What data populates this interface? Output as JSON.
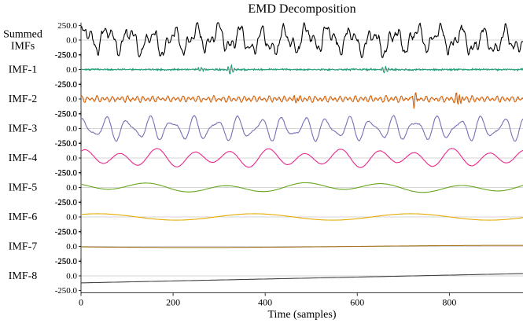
{
  "chart_data": {
    "type": "line",
    "title": "EMD Decomposition",
    "xlabel": "Time (samples)",
    "xlim": [
      0,
      960
    ],
    "x_ticks": [
      0,
      200,
      400,
      600,
      800
    ],
    "x_tick_labels": [
      "0",
      "200",
      "400",
      "600",
      "800"
    ],
    "y_ticks": [
      -250,
      0,
      250
    ],
    "y_tick_labels": [
      "-250.0",
      "0.0",
      "250.0"
    ],
    "ylim": [
      -300,
      300
    ],
    "grid": false,
    "zero_line": true,
    "series": [
      {
        "name": "Summed\nIMFs",
        "color": "#000000",
        "components": [
          {
            "amp": 160,
            "period": 48,
            "phase": 0.3
          },
          {
            "amp": 95,
            "period": 23,
            "phase": 1.2
          },
          {
            "amp": 55,
            "period": 11,
            "phase": 2.0
          },
          {
            "amp": 40,
            "period": 240,
            "phase": 0.5
          }
        ],
        "noise": 28
      },
      {
        "name": "IMF-1",
        "color": "#1b9e77",
        "components": [
          {
            "amp": 8,
            "period": 3.1,
            "phase": 0
          },
          {
            "amp": 6,
            "period": 4.7,
            "phase": 1
          }
        ],
        "noise": 10,
        "bursts": [
          {
            "x": 325,
            "amp": 90
          },
          {
            "x": 660,
            "amp": 70
          },
          {
            "x": 260,
            "amp": 35
          }
        ]
      },
      {
        "name": "IMF-2",
        "color": "#d95f02",
        "components": [
          {
            "amp": 35,
            "period": 11,
            "phase": 0.4
          },
          {
            "amp": 20,
            "period": 17,
            "phase": 1.4
          }
        ],
        "noise": 12,
        "bursts": [
          {
            "x": 725,
            "amp": 110
          },
          {
            "x": 820,
            "amp": 140
          },
          {
            "x": 468,
            "amp": 70
          }
        ]
      },
      {
        "name": "IMF-3",
        "color": "#7570b3",
        "components": [
          {
            "amp": 150,
            "period": 48,
            "phase": 0.8
          },
          {
            "amp": 70,
            "period": 31,
            "phase": 2.1
          }
        ],
        "noise": 8
      },
      {
        "name": "IMF-4",
        "color": "#e7298a",
        "components": [
          {
            "amp": 120,
            "period": 80,
            "phase": 1.1
          },
          {
            "amp": 45,
            "period": 130,
            "phase": 0.2
          }
        ],
        "noise": 3
      },
      {
        "name": "IMF-5",
        "color": "#66a61e",
        "components": [
          {
            "amp": 60,
            "period": 170,
            "phase": 2.5
          },
          {
            "amp": 30,
            "period": 480,
            "phase": 0.7
          }
        ],
        "noise": 1
      },
      {
        "name": "IMF-6",
        "color": "#e6ab02",
        "components": [
          {
            "amp": 55,
            "period": 340,
            "phase": 0.9
          }
        ],
        "noise": 0
      },
      {
        "name": "IMF-7",
        "color": "#a6761d",
        "components": [
          {
            "amp": 18,
            "period": 1400,
            "phase": 3.6
          }
        ],
        "noise": 0
      },
      {
        "name": "IMF-8",
        "color": "#444444",
        "trend": {
          "start": -120,
          "end": 40
        },
        "components": [],
        "noise": 0
      }
    ]
  }
}
